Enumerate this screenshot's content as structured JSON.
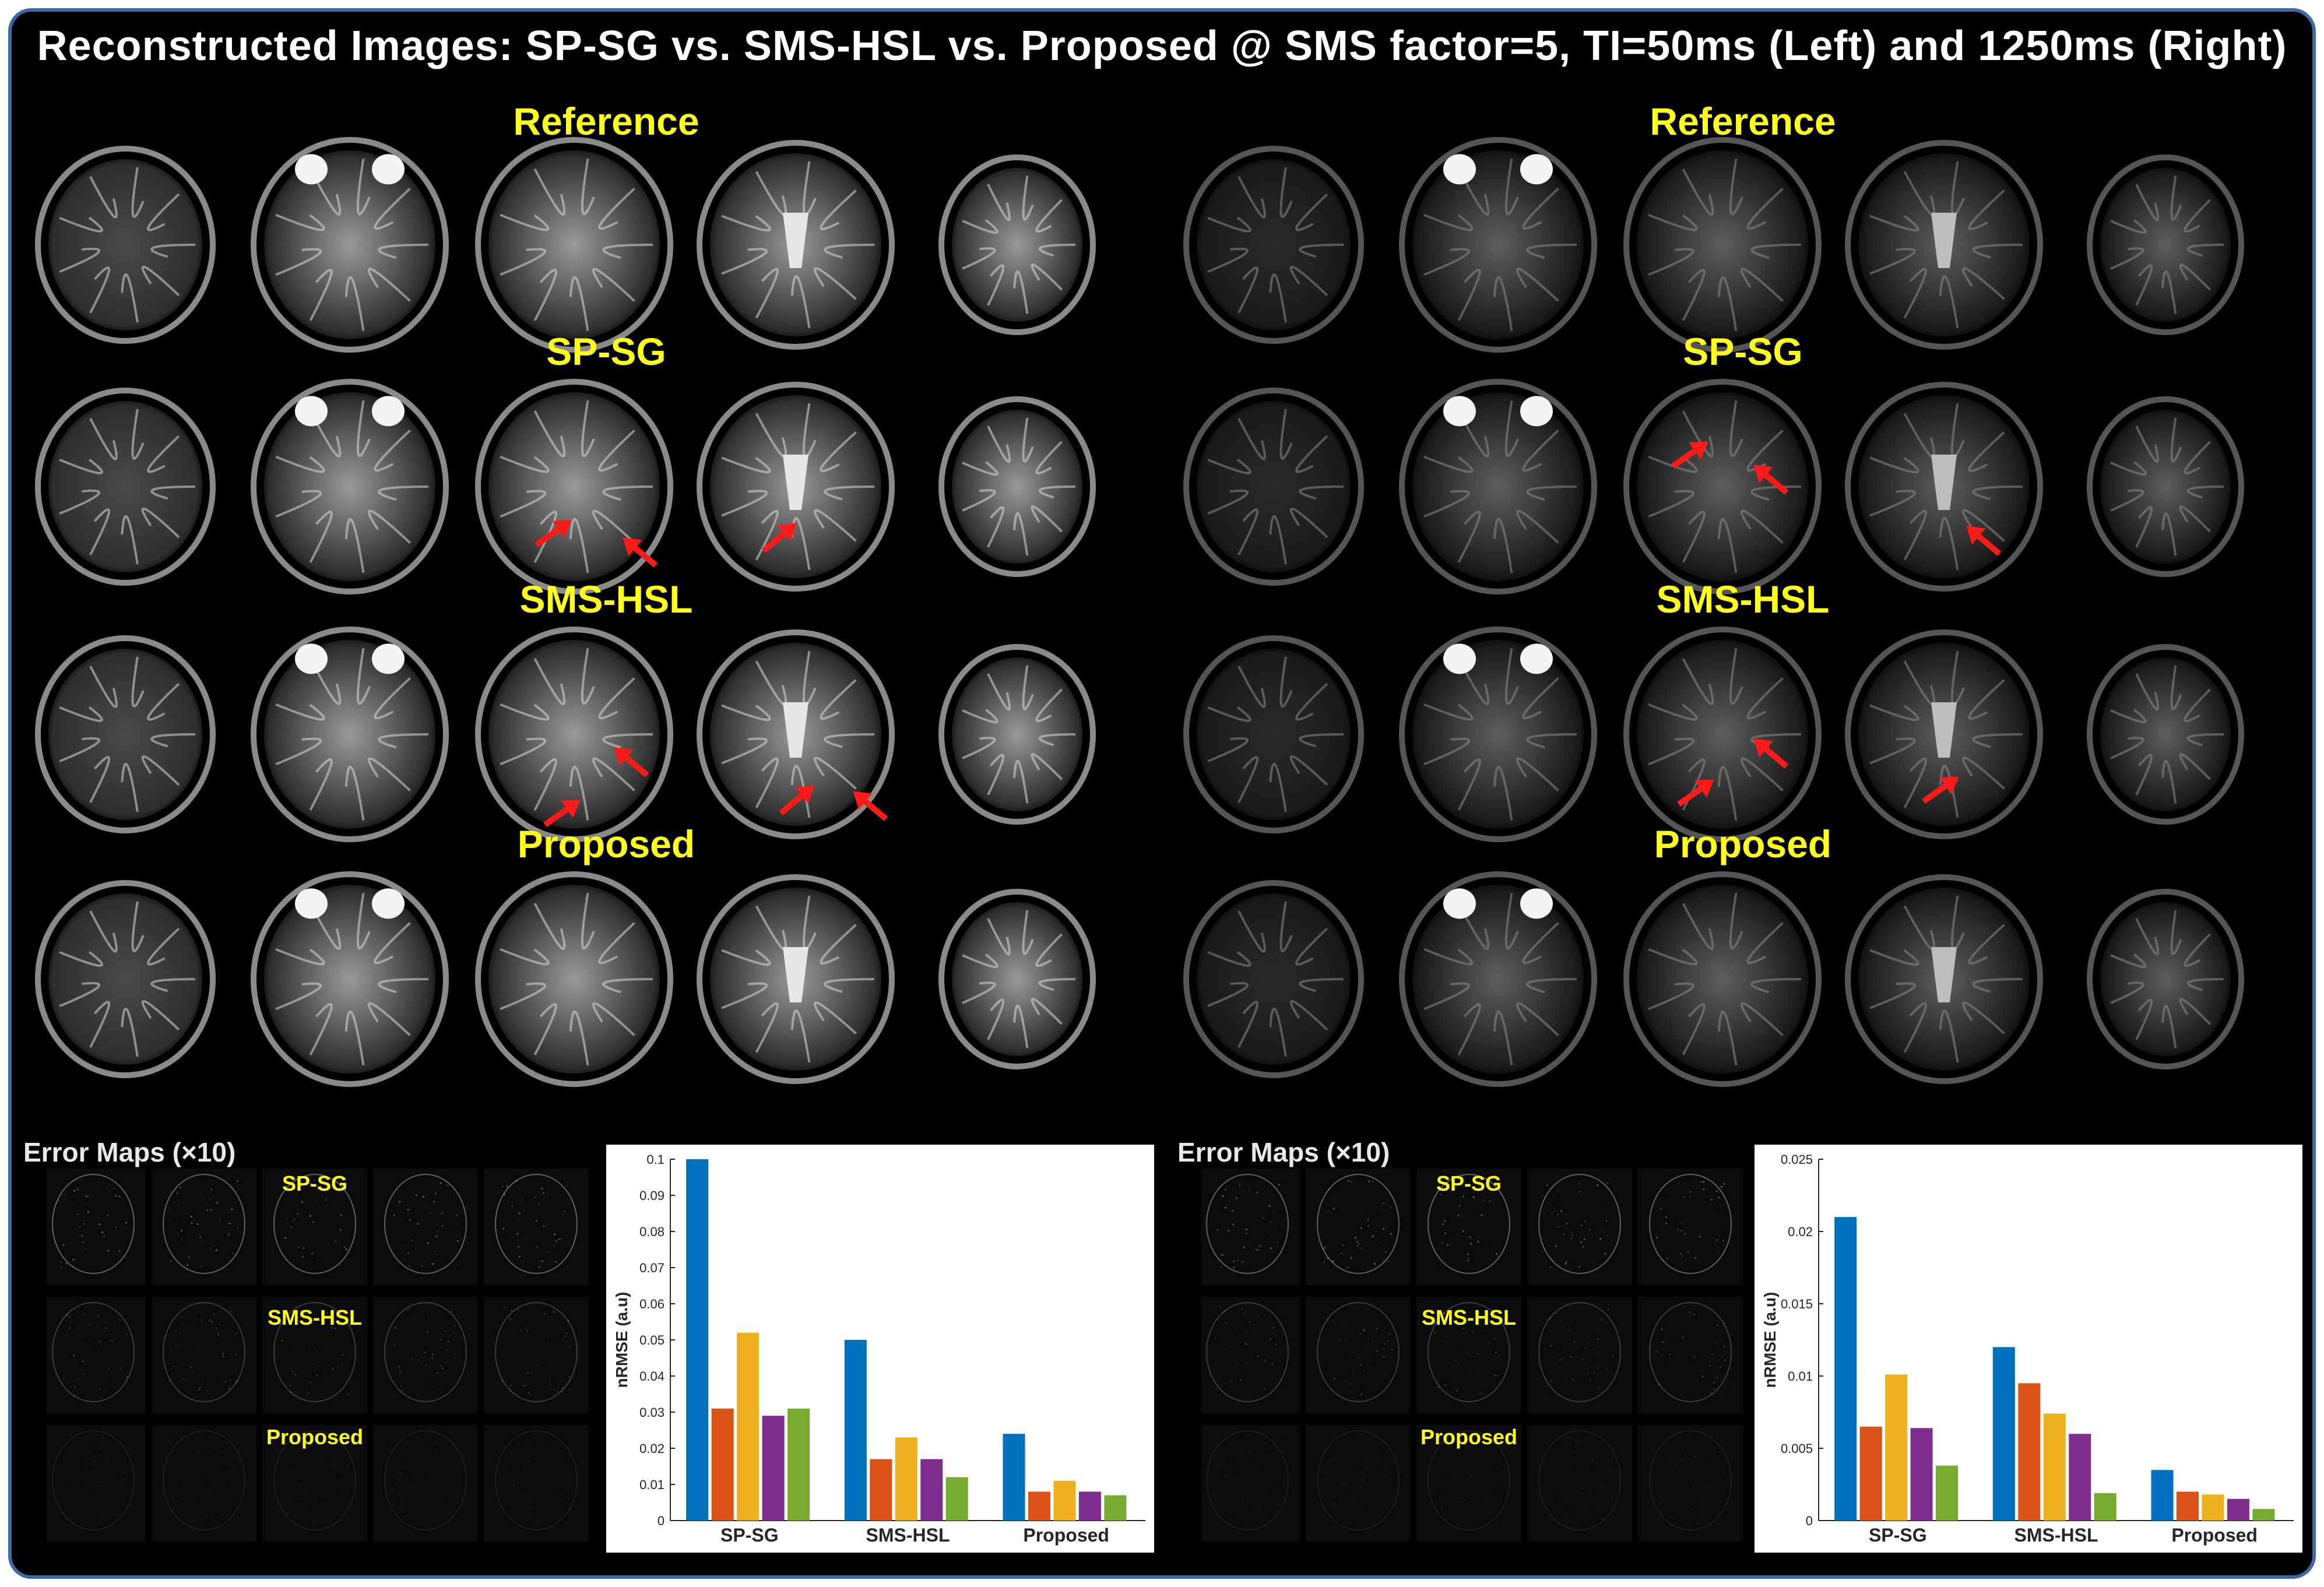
{
  "figure": {
    "title": "Reconstructed Images: SP-SG vs. SMS-HSL vs. Proposed @ SMS factor=5, TI=50ms (Left) and 1250ms (Right)"
  },
  "left_panel": {
    "rows": [
      "Reference",
      "SP-SG",
      "SMS-HSL",
      "Proposed"
    ]
  },
  "right_panel": {
    "rows": [
      "Reference",
      "SP-SG",
      "SMS-HSL",
      "Proposed"
    ]
  },
  "left_error": {
    "title": "Error Maps (×10)",
    "labels": [
      "SP-SG",
      "SMS-HSL",
      "Proposed"
    ]
  },
  "right_error": {
    "title": "Error Maps (×10)",
    "labels": [
      "SP-SG",
      "SMS-HSL",
      "Proposed"
    ]
  },
  "colors": {
    "series": [
      "#0072bd",
      "#d95319",
      "#edb120",
      "#7e2f8e",
      "#77ac30"
    ],
    "label_yellow": "#ffff1a",
    "arrow_red": "#ff1a1a"
  },
  "chart_data": [
    {
      "type": "bar",
      "ylabel": "nRMSE (a.u)",
      "categories": [
        "SP-SG",
        "SMS-HSL",
        "Proposed"
      ],
      "ylim": [
        0,
        0.1
      ],
      "yticks": [
        0,
        0.01,
        0.02,
        0.03,
        0.04,
        0.05,
        0.06,
        0.07,
        0.08,
        0.09,
        0.1
      ],
      "ytick_labels": [
        "0",
        "0.01",
        "0.02",
        "0.03",
        "0.04",
        "0.05",
        "0.06",
        "0.07",
        "0.08",
        "0.09",
        "0.1"
      ],
      "series": [
        {
          "values": [
            0.1,
            0.05,
            0.024
          ]
        },
        {
          "values": [
            0.031,
            0.017,
            0.008
          ]
        },
        {
          "values": [
            0.052,
            0.023,
            0.011
          ]
        },
        {
          "values": [
            0.029,
            0.017,
            0.008
          ]
        },
        {
          "values": [
            0.031,
            0.012,
            0.007
          ]
        }
      ],
      "grid": false
    },
    {
      "type": "bar",
      "ylabel": "nRMSE (a.u)",
      "categories": [
        "SP-SG",
        "SMS-HSL",
        "Proposed"
      ],
      "ylim": [
        0,
        0.025
      ],
      "yticks": [
        0,
        0.005,
        0.01,
        0.015,
        0.02,
        0.025
      ],
      "ytick_labels": [
        "0",
        "0.005",
        "0.01",
        "0.015",
        "0.02",
        "0.025"
      ],
      "series": [
        {
          "values": [
            0.021,
            0.012,
            0.0035
          ]
        },
        {
          "values": [
            0.0065,
            0.0095,
            0.002
          ]
        },
        {
          "values": [
            0.0101,
            0.0074,
            0.0018
          ]
        },
        {
          "values": [
            0.0064,
            0.006,
            0.0015
          ]
        },
        {
          "values": [
            0.0038,
            0.0019,
            0.0008
          ]
        }
      ],
      "grid": false
    }
  ]
}
